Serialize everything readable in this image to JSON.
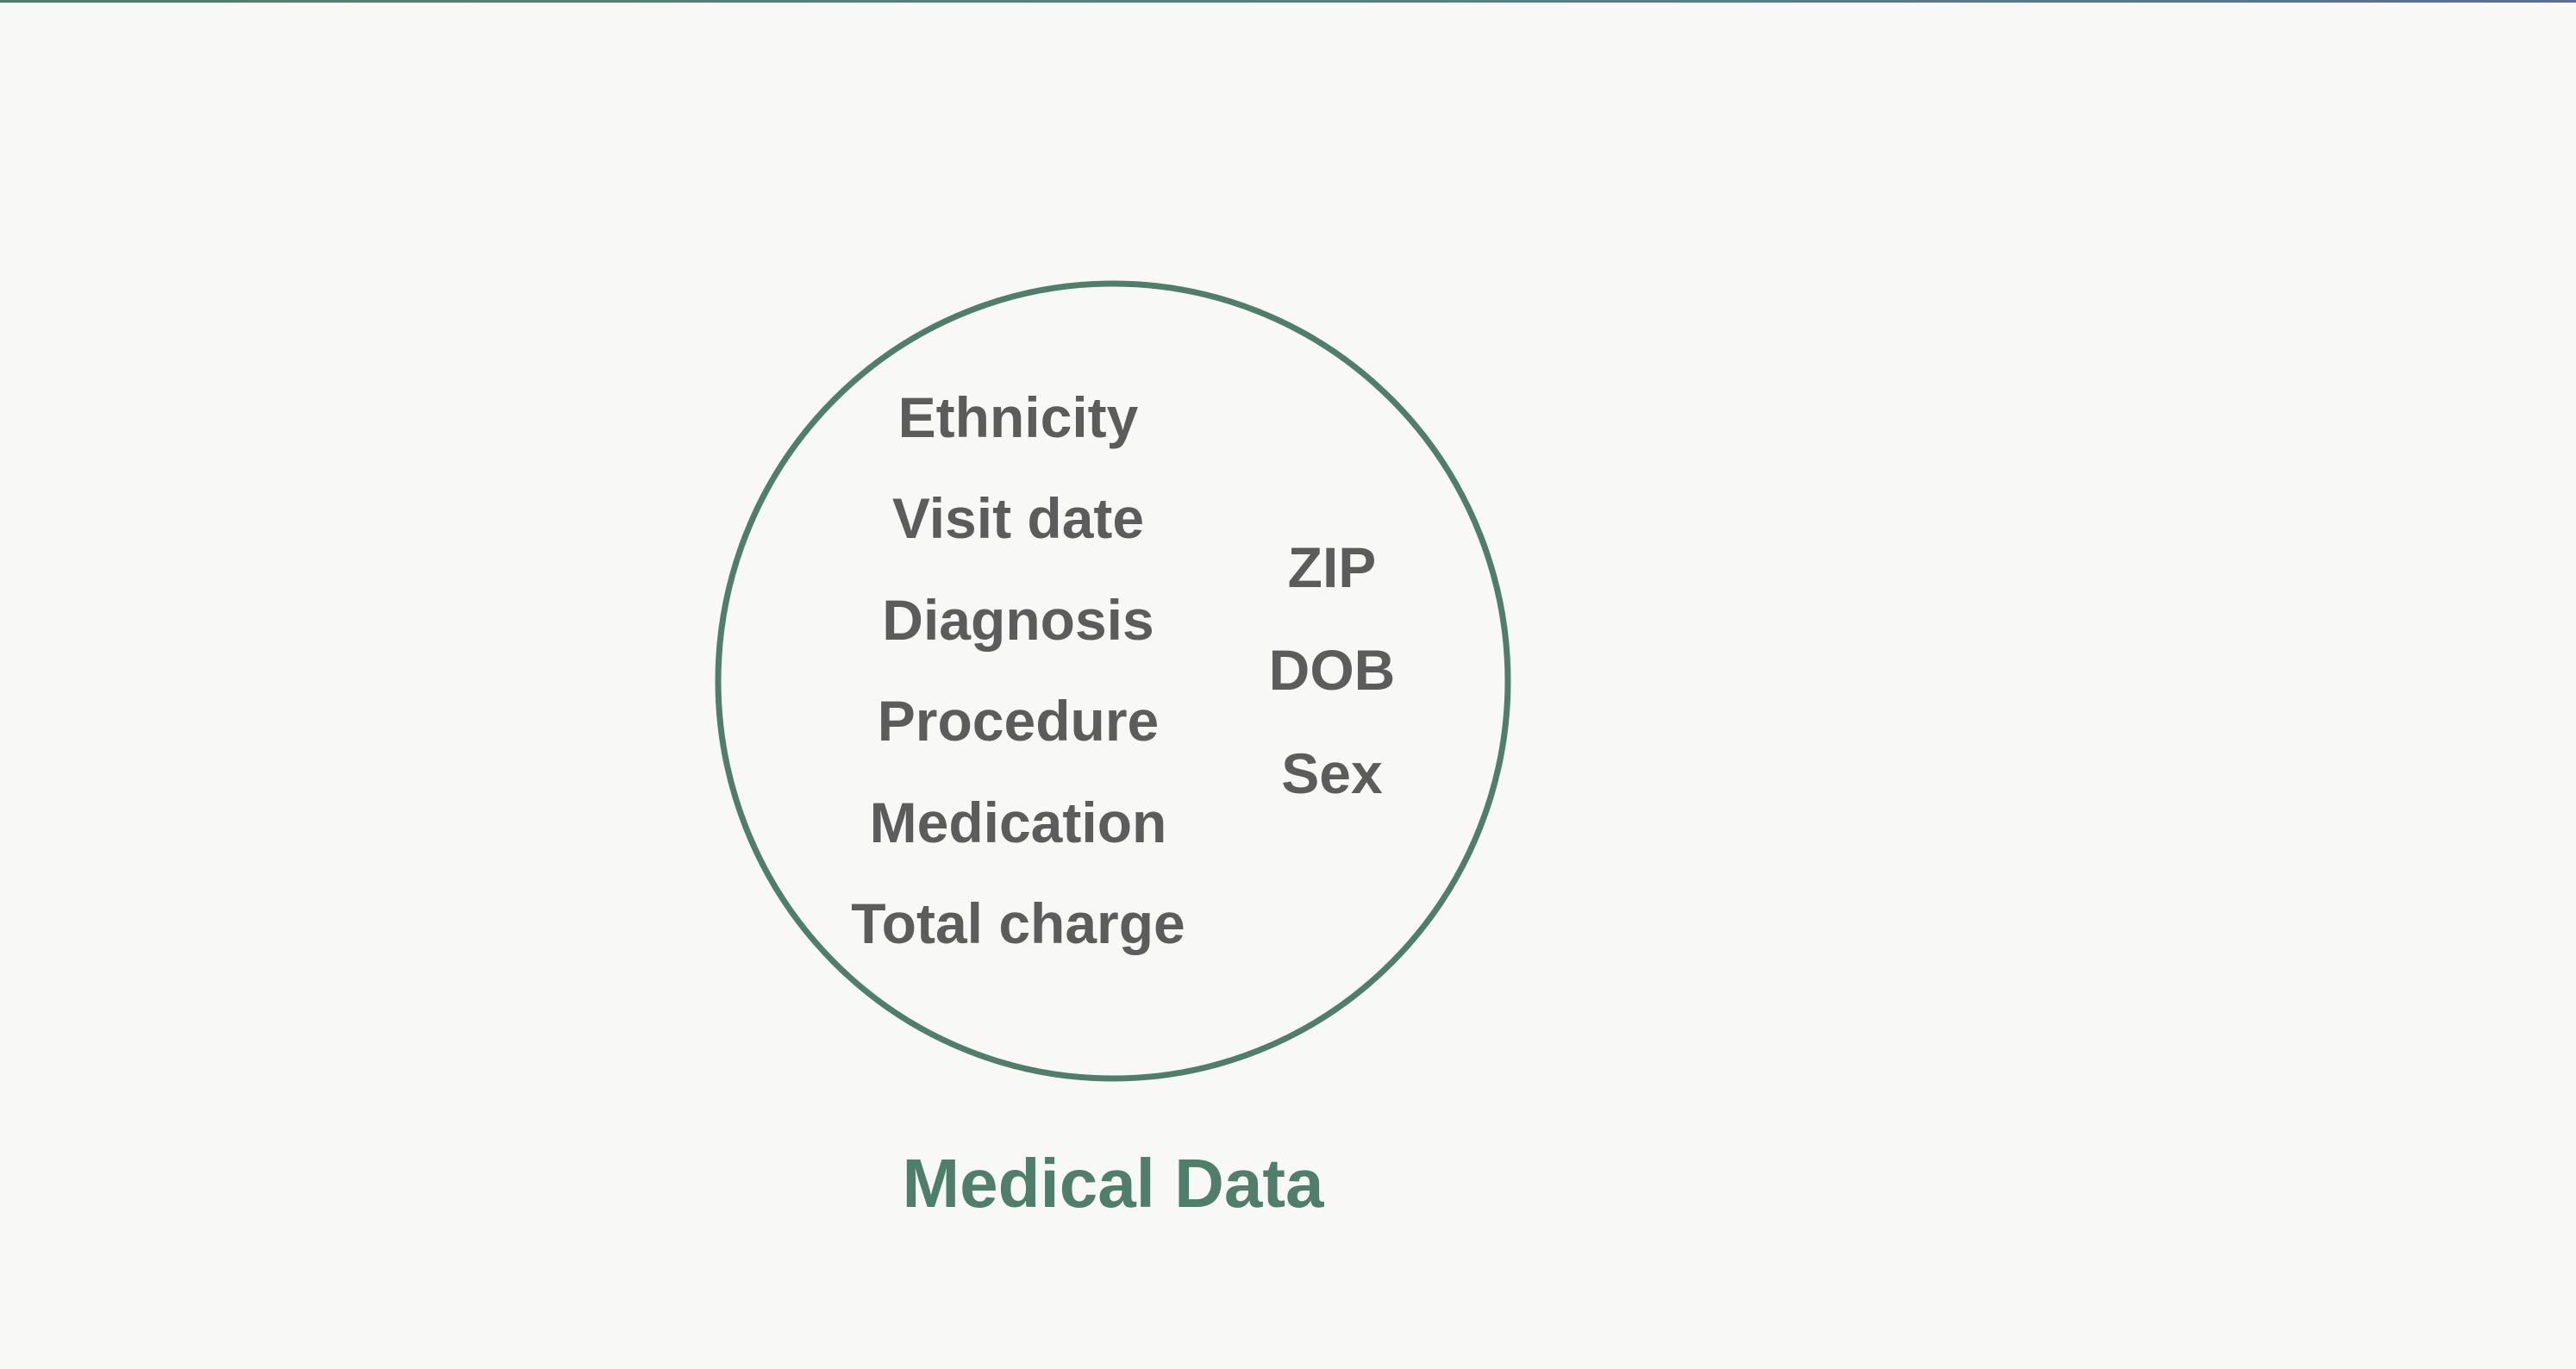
{
  "diagram": {
    "set_title": "Medical Data",
    "inner_fields": [
      "Ethnicity",
      "Visit date",
      "Diagnosis",
      "Procedure",
      "Medication",
      "Total charge"
    ],
    "shared_fields": [
      "ZIP",
      "DOB",
      "Sex"
    ],
    "colors": {
      "circle_stroke": "#4f7e6a",
      "title": "#4f7e6a",
      "labels": "#5c5c5c",
      "background": "#f8f8f7"
    }
  }
}
